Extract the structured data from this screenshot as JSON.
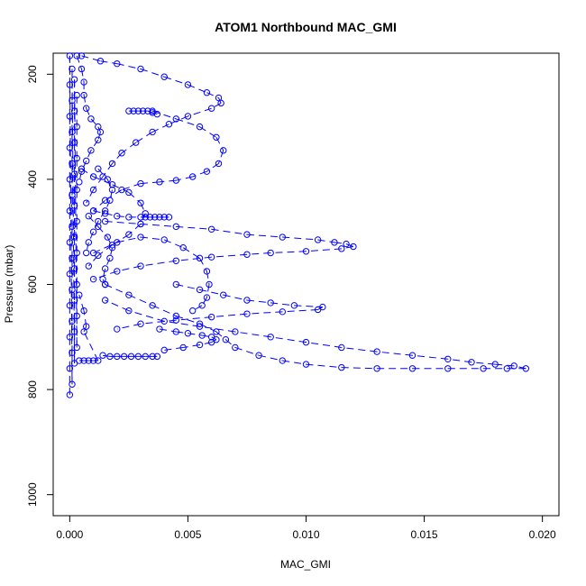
{
  "chart_data": {
    "type": "scatter",
    "title": "ATOM1 Northbound MAC_GMI",
    "xlabel": "MAC_GMI",
    "ylabel": "Pressure (mbar)",
    "xlim": [
      -0.0007,
      0.0207
    ],
    "ylim": [
      1040,
      160
    ],
    "y_reversed": true,
    "x_ticks": [
      0.0,
      0.005,
      0.01,
      0.015,
      0.02
    ],
    "x_tick_labels": [
      "0.000",
      "0.005",
      "0.010",
      "0.015",
      "0.020"
    ],
    "y_ticks": [
      200,
      400,
      600,
      800,
      1000
    ],
    "y_tick_labels": [
      "200",
      "400",
      "600",
      "800",
      "1000"
    ],
    "grid": false,
    "legend": "none",
    "series_color": "#0000ff",
    "series": [
      {
        "points": [
          [
            0.0,
            810
          ],
          [
            0.0,
            760
          ],
          [
            0.0,
            700
          ],
          [
            0.0,
            640
          ],
          [
            0.0,
            580
          ],
          [
            0.0,
            520
          ],
          [
            0.0,
            460
          ],
          [
            0.0,
            400
          ],
          [
            0.0,
            340
          ],
          [
            0.0,
            280
          ],
          [
            0.0,
            220
          ],
          [
            0.0,
            165
          ],
          [
            0.0001,
            790
          ],
          [
            0.0001,
            730
          ],
          [
            0.0001,
            670
          ],
          [
            0.0001,
            610
          ],
          [
            0.0001,
            550
          ],
          [
            0.0001,
            490
          ],
          [
            0.0001,
            430
          ],
          [
            0.0001,
            370
          ],
          [
            0.0001,
            310
          ],
          [
            0.0001,
            250
          ],
          [
            0.0001,
            190
          ],
          [
            0.0002,
            750
          ],
          [
            0.0002,
            690
          ],
          [
            0.0002,
            630
          ],
          [
            0.0002,
            570
          ],
          [
            0.0002,
            510
          ],
          [
            0.0002,
            450
          ],
          [
            0.0002,
            390
          ],
          [
            0.0002,
            330
          ],
          [
            0.0002,
            270
          ],
          [
            0.0002,
            210
          ],
          [
            0.0003,
            720
          ],
          [
            0.0003,
            660
          ],
          [
            0.0003,
            600
          ],
          [
            0.0003,
            540
          ],
          [
            0.0003,
            480
          ],
          [
            0.0003,
            420
          ],
          [
            0.0003,
            360
          ],
          [
            0.0003,
            300
          ],
          [
            0.0003,
            240
          ]
        ]
      },
      {
        "points": [
          [
            0.0004,
            745
          ],
          [
            0.0006,
            745
          ],
          [
            0.0008,
            745
          ],
          [
            0.001,
            745
          ],
          [
            0.0012,
            745
          ],
          [
            0.0006,
            690
          ],
          [
            0.0007,
            680
          ],
          [
            0.0006,
            650
          ],
          [
            0.0004,
            620
          ]
        ]
      },
      {
        "points": [
          [
            0.0003,
            165
          ],
          [
            0.0005,
            190
          ],
          [
            0.0006,
            215
          ],
          [
            0.0006,
            240
          ],
          [
            0.0007,
            265
          ],
          [
            0.0009,
            285
          ],
          [
            0.0012,
            300
          ],
          [
            0.0013,
            310
          ],
          [
            0.0012,
            325
          ],
          [
            0.0009,
            345
          ],
          [
            0.0007,
            365
          ],
          [
            0.0005,
            385
          ],
          [
            0.0004,
            405
          ]
        ]
      },
      {
        "points": [
          [
            0.0005,
            165
          ],
          [
            0.0013,
            175
          ],
          [
            0.002,
            180
          ],
          [
            0.003,
            190
          ],
          [
            0.004,
            205
          ],
          [
            0.005,
            220
          ],
          [
            0.0058,
            235
          ],
          [
            0.0063,
            245
          ],
          [
            0.0064,
            255
          ],
          [
            0.006,
            265
          ],
          [
            0.005,
            280
          ],
          [
            0.0042,
            295
          ],
          [
            0.0035,
            310
          ],
          [
            0.0028,
            330
          ],
          [
            0.0022,
            350
          ],
          [
            0.0018,
            370
          ],
          [
            0.0014,
            395
          ],
          [
            0.001,
            420
          ],
          [
            0.0007,
            445
          ]
        ]
      },
      {
        "points": [
          [
            0.0025,
            270
          ],
          [
            0.0027,
            270
          ],
          [
            0.0029,
            270
          ],
          [
            0.0031,
            270
          ],
          [
            0.0033,
            270
          ],
          [
            0.0035,
            273
          ],
          [
            0.0037,
            276
          ]
        ]
      },
      {
        "points": [
          [
            0.0035,
            270
          ],
          [
            0.0045,
            285
          ],
          [
            0.0055,
            300
          ],
          [
            0.0062,
            320
          ],
          [
            0.0065,
            345
          ],
          [
            0.0063,
            370
          ],
          [
            0.0058,
            385
          ],
          [
            0.0052,
            395
          ],
          [
            0.0045,
            402
          ],
          [
            0.0038,
            405
          ],
          [
            0.003,
            408
          ],
          [
            0.0022,
            420
          ],
          [
            0.0015,
            440
          ],
          [
            0.001,
            460
          ]
        ]
      },
      {
        "points": [
          [
            0.001,
            460
          ],
          [
            0.0015,
            465
          ],
          [
            0.002,
            470
          ],
          [
            0.0025,
            472
          ],
          [
            0.003,
            472
          ],
          [
            0.0032,
            472
          ],
          [
            0.0034,
            472
          ],
          [
            0.0036,
            472
          ],
          [
            0.0038,
            472
          ],
          [
            0.004,
            472
          ],
          [
            0.0042,
            472
          ]
        ]
      },
      {
        "points": [
          [
            0.0015,
            480
          ],
          [
            0.003,
            485
          ],
          [
            0.0045,
            490
          ],
          [
            0.006,
            495
          ],
          [
            0.0075,
            505
          ],
          [
            0.009,
            510
          ],
          [
            0.0105,
            515
          ],
          [
            0.0112,
            520
          ],
          [
            0.0117,
            523
          ],
          [
            0.012,
            528
          ],
          [
            0.0115,
            532
          ],
          [
            0.01,
            537
          ],
          [
            0.0085,
            540
          ],
          [
            0.0075,
            543
          ],
          [
            0.006,
            548
          ],
          [
            0.0045,
            555
          ],
          [
            0.003,
            565
          ],
          [
            0.002,
            575
          ],
          [
            0.001,
            590
          ]
        ]
      },
      {
        "points": [
          [
            0.0008,
            470
          ],
          [
            0.0012,
            490
          ],
          [
            0.0016,
            510
          ],
          [
            0.0018,
            530
          ],
          [
            0.0017,
            550
          ],
          [
            0.0015,
            570
          ],
          [
            0.0014,
            590
          ],
          [
            0.0015,
            600
          ]
        ]
      },
      {
        "points": [
          [
            0.0015,
            600
          ],
          [
            0.0025,
            620
          ],
          [
            0.0035,
            640
          ],
          [
            0.0045,
            660
          ],
          [
            0.0055,
            675
          ],
          [
            0.0062,
            690
          ],
          [
            0.0066,
            705
          ],
          [
            0.007,
            720
          ],
          [
            0.008,
            735
          ],
          [
            0.009,
            745
          ],
          [
            0.01,
            752
          ],
          [
            0.0115,
            758
          ],
          [
            0.013,
            760
          ],
          [
            0.0145,
            760
          ],
          [
            0.016,
            760
          ],
          [
            0.0175,
            760
          ],
          [
            0.0185,
            760
          ],
          [
            0.0193,
            760
          ],
          [
            0.0188,
            755
          ],
          [
            0.018,
            752
          ],
          [
            0.017,
            748
          ],
          [
            0.016,
            742
          ],
          [
            0.0145,
            735
          ],
          [
            0.013,
            728
          ],
          [
            0.0115,
            720
          ],
          [
            0.01,
            710
          ],
          [
            0.0085,
            700
          ],
          [
            0.007,
            690
          ],
          [
            0.0055,
            680
          ],
          [
            0.004,
            670
          ],
          [
            0.0025,
            650
          ],
          [
            0.0015,
            630
          ]
        ]
      },
      {
        "points": [
          [
            0.0014,
            735
          ],
          [
            0.0017,
            737
          ],
          [
            0.002,
            737
          ],
          [
            0.0023,
            737
          ],
          [
            0.0026,
            737
          ],
          [
            0.0029,
            737
          ],
          [
            0.0032,
            737
          ],
          [
            0.0035,
            737
          ],
          [
            0.0037,
            737
          ]
        ]
      },
      {
        "points": [
          [
            0.0038,
            685
          ],
          [
            0.0045,
            690
          ],
          [
            0.005,
            693
          ],
          [
            0.0056,
            697
          ],
          [
            0.006,
            700
          ],
          [
            0.0062,
            705
          ],
          [
            0.006,
            710
          ],
          [
            0.0055,
            715
          ],
          [
            0.0048,
            720
          ],
          [
            0.004,
            725
          ]
        ]
      },
      {
        "points": [
          [
            0.0045,
            600
          ],
          [
            0.0055,
            610
          ],
          [
            0.0065,
            620
          ],
          [
            0.0075,
            630
          ],
          [
            0.0085,
            635
          ],
          [
            0.0095,
            640
          ],
          [
            0.0107,
            643
          ],
          [
            0.0105,
            648
          ],
          [
            0.009,
            652
          ],
          [
            0.0075,
            656
          ],
          [
            0.006,
            662
          ],
          [
            0.0045,
            668
          ],
          [
            0.003,
            675
          ],
          [
            0.002,
            685
          ]
        ]
      },
      {
        "points": [
          [
            0.001,
            540
          ],
          [
            0.002,
            520
          ],
          [
            0.003,
            510
          ],
          [
            0.004,
            515
          ],
          [
            0.0048,
            530
          ],
          [
            0.0055,
            550
          ],
          [
            0.0058,
            575
          ],
          [
            0.0059,
            600
          ],
          [
            0.0058,
            625
          ],
          [
            0.0056,
            640
          ],
          [
            0.0052,
            650
          ]
        ]
      },
      {
        "points": [
          [
            0.0012,
            380
          ],
          [
            0.0016,
            400
          ],
          [
            0.0018,
            420
          ],
          [
            0.0017,
            440
          ],
          [
            0.0015,
            460
          ],
          [
            0.0012,
            480
          ],
          [
            0.001,
            500
          ],
          [
            0.0008,
            520
          ],
          [
            0.0007,
            540
          ]
        ]
      },
      {
        "points": [
          [
            0.0005,
            380
          ],
          [
            0.001,
            395
          ],
          [
            0.0018,
            410
          ],
          [
            0.0025,
            425
          ],
          [
            0.003,
            445
          ],
          [
            0.0032,
            465
          ],
          [
            0.003,
            485
          ],
          [
            0.0025,
            505
          ],
          [
            0.0018,
            525
          ],
          [
            0.0012,
            545
          ],
          [
            0.0008,
            565
          ]
        ]
      }
    ]
  }
}
